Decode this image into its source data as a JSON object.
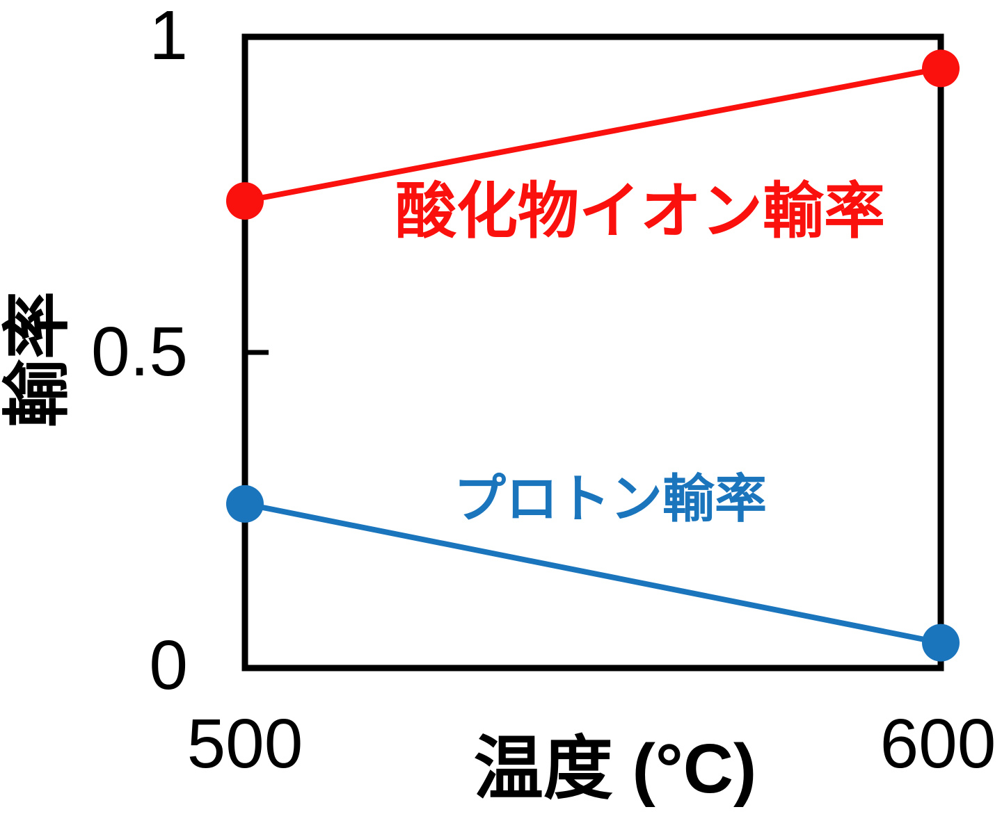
{
  "chart_data": {
    "type": "line",
    "title": "",
    "xlabel": "温度 (°C)",
    "ylabel": "輸率",
    "xlim": [
      500,
      600
    ],
    "ylim": [
      0,
      1
    ],
    "grid": false,
    "legend_position": "inline-annotation",
    "frame_color": "#000000",
    "background_color": "#ffffff",
    "x": [
      500,
      600
    ],
    "xticks": [
      {
        "value": 500,
        "label": "500",
        "tick_mark": false
      },
      {
        "value": 600,
        "label": "600",
        "tick_mark": false
      }
    ],
    "yticks": [
      {
        "value": 0,
        "label": "0",
        "tick_mark": false
      },
      {
        "value": 0.5,
        "label": "0.5",
        "tick_mark": true
      },
      {
        "value": 1,
        "label": "1",
        "tick_mark": false
      }
    ],
    "series": [
      {
        "name": "酸化物イオン輸率",
        "color": "#fa100c",
        "marker": "circle",
        "values": [
          0.74,
          0.95
        ]
      },
      {
        "name": "プロトン輸率",
        "color": "#1b75bc",
        "marker": "circle",
        "values": [
          0.26,
          0.04
        ]
      }
    ]
  }
}
